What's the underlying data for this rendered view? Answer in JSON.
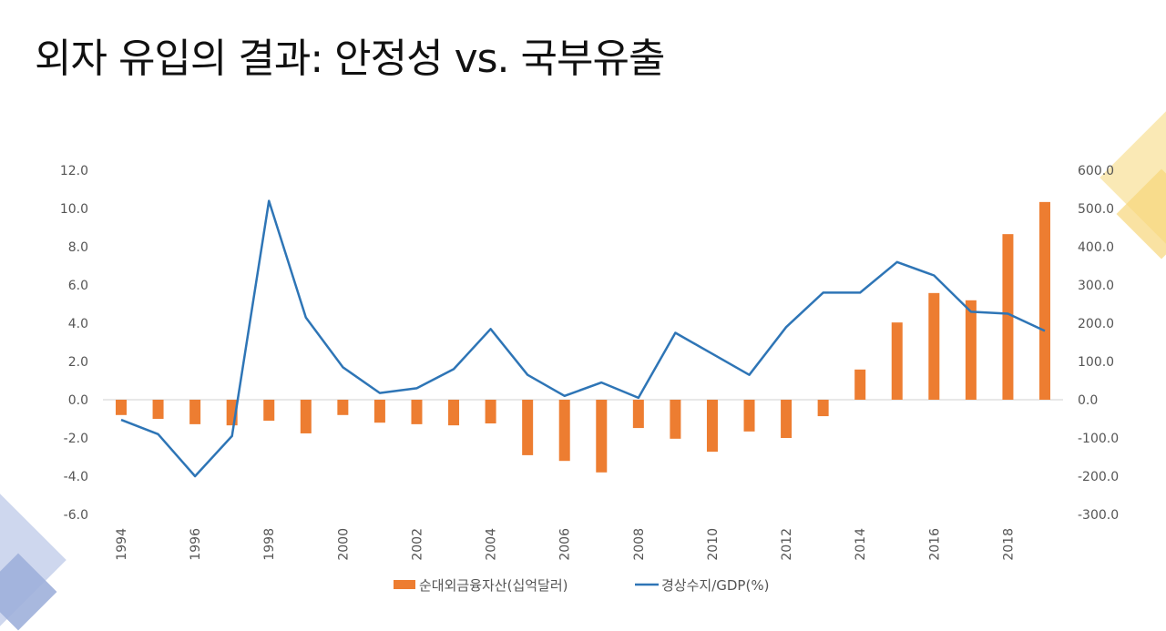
{
  "title": "외자 유입의 결과: 안정성 vs. 국부유출",
  "chart_data": {
    "type": "bar+line",
    "title": "외자 유입의 결과: 안정성 vs. 국부유출",
    "categories": [
      "1994",
      "1995",
      "1996",
      "1997",
      "1998",
      "1999",
      "2000",
      "2001",
      "2002",
      "2003",
      "2004",
      "2005",
      "2006",
      "2007",
      "2008",
      "2009",
      "2010",
      "2011",
      "2012",
      "2013",
      "2014",
      "2015",
      "2016",
      "2017",
      "2018",
      "2019"
    ],
    "x_tick_labels": [
      "1994",
      "1996",
      "1998",
      "2000",
      "2002",
      "2004",
      "2006",
      "2008",
      "2010",
      "2012",
      "2014",
      "2016",
      "2018"
    ],
    "series": [
      {
        "name": "순대외금융자산(십억달러)",
        "type": "bar",
        "axis": "right",
        "color": "#ED7D31",
        "values": [
          -40,
          -50,
          -64,
          -67,
          -55,
          -88,
          -40,
          -60,
          -64,
          -67,
          -62,
          -145,
          -160,
          -190,
          -74,
          -102,
          -136,
          -83,
          -100,
          -43,
          79,
          202,
          279,
          260,
          433,
          517
        ]
      },
      {
        "name": "경상수지/GDP(%)",
        "type": "line",
        "axis": "left",
        "color": "#2E75B6",
        "values": [
          -1.05,
          -1.8,
          -4.0,
          -1.9,
          10.4,
          4.3,
          1.7,
          0.35,
          0.6,
          1.6,
          3.7,
          1.3,
          0.2,
          0.9,
          0.1,
          3.5,
          2.4,
          1.3,
          3.8,
          5.6,
          5.6,
          7.2,
          6.5,
          4.6,
          4.5,
          3.6
        ]
      }
    ],
    "left_axis": {
      "ylim": [
        -6,
        12
      ],
      "ticks": [
        "12.0",
        "10.0",
        "8.0",
        "6.0",
        "4.0",
        "2.0",
        "0.0",
        "-2.0",
        "-4.0",
        "-6.0"
      ]
    },
    "right_axis": {
      "ylim": [
        -300,
        600
      ],
      "ticks": [
        "600.0",
        "500.0",
        "400.0",
        "300.0",
        "200.0",
        "100.0",
        "0.0",
        "-100.0",
        "-200.0",
        "-300.0"
      ]
    },
    "grid": false,
    "legend_position": "bottom"
  }
}
